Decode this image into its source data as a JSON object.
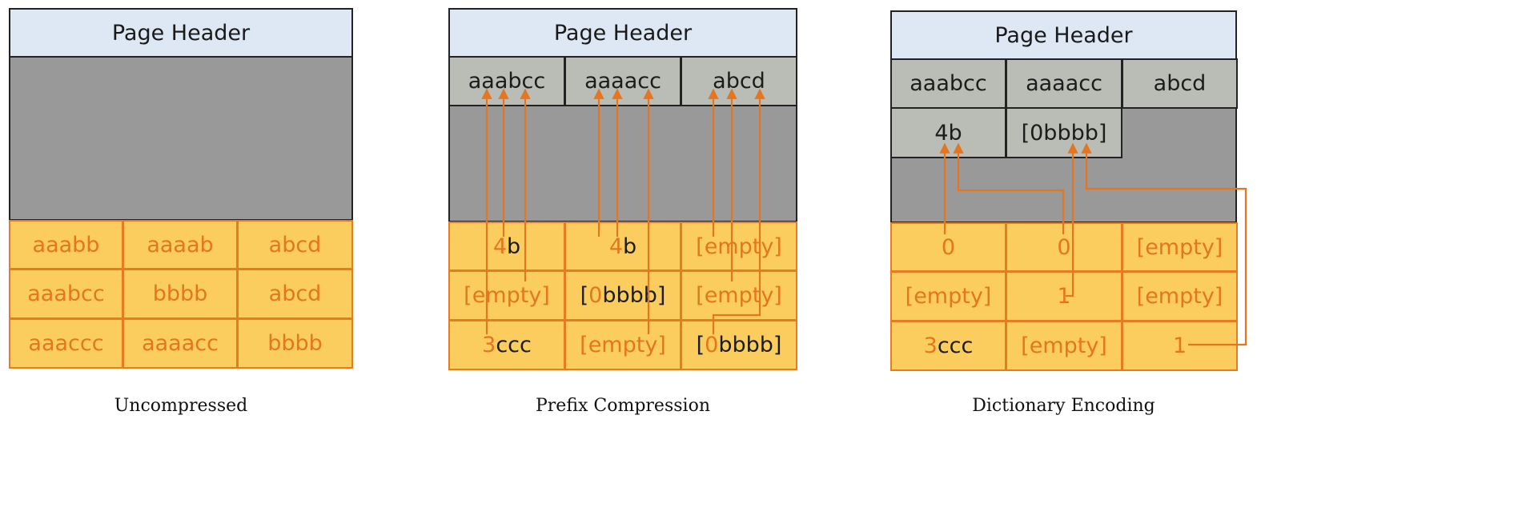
{
  "colors": {
    "page_header_bg": "#dde8f4",
    "page_body_bg": "#999999",
    "data_cell_bg": "#fbcd5f",
    "data_cell_border": "#e77b22",
    "data_text": "#e4761f",
    "cih_cell_bg": "#b9bdb5",
    "arrow": "#e4761f"
  },
  "panels": [
    {
      "header": "Page Header",
      "caption": "Uncompressed",
      "rows": [
        [
          {
            "a": "aaabb"
          },
          {
            "a": "aaaab"
          },
          {
            "a": "abcd"
          }
        ],
        [
          {
            "a": "aaabcc"
          },
          {
            "a": "bbbb"
          },
          {
            "a": "abcd"
          }
        ],
        [
          {
            "a": "aaaccc"
          },
          {
            "a": "aaaacc"
          },
          {
            "a": "bbbb"
          }
        ]
      ]
    },
    {
      "header": "Page Header",
      "caption": "Prefix Compression",
      "prefix_row": [
        "aaabcc",
        "aaaacc",
        "abcd"
      ],
      "rows": [
        [
          {
            "a": "4",
            "b": "b"
          },
          {
            "a": "4",
            "b": "b"
          },
          {
            "a": "[empty]"
          }
        ],
        [
          {
            "a": "[empty]"
          },
          {
            "p": "[",
            "a": "0",
            "b": "bbbb]"
          },
          {
            "a": "[empty]"
          }
        ],
        [
          {
            "a": "3",
            "b": "ccc"
          },
          {
            "a": "[empty]"
          },
          {
            "p": "[",
            "a": "0",
            "b": "bbbb]"
          }
        ]
      ]
    },
    {
      "header": "Page Header",
      "caption": "Dictionary Encoding",
      "prefix_row": [
        "aaabcc",
        "aaaacc",
        "abcd"
      ],
      "dictionary_row": [
        "4b",
        "[0bbbb]"
      ],
      "rows": [
        [
          {
            "a": "0"
          },
          {
            "a": "0"
          },
          {
            "a": "[empty]"
          }
        ],
        [
          {
            "a": "[empty]"
          },
          {
            "a": "1"
          },
          {
            "a": "[empty]"
          }
        ],
        [
          {
            "a": "3",
            "b": "ccc"
          },
          {
            "a": "[empty]"
          },
          {
            "a": "1"
          }
        ]
      ]
    }
  ]
}
